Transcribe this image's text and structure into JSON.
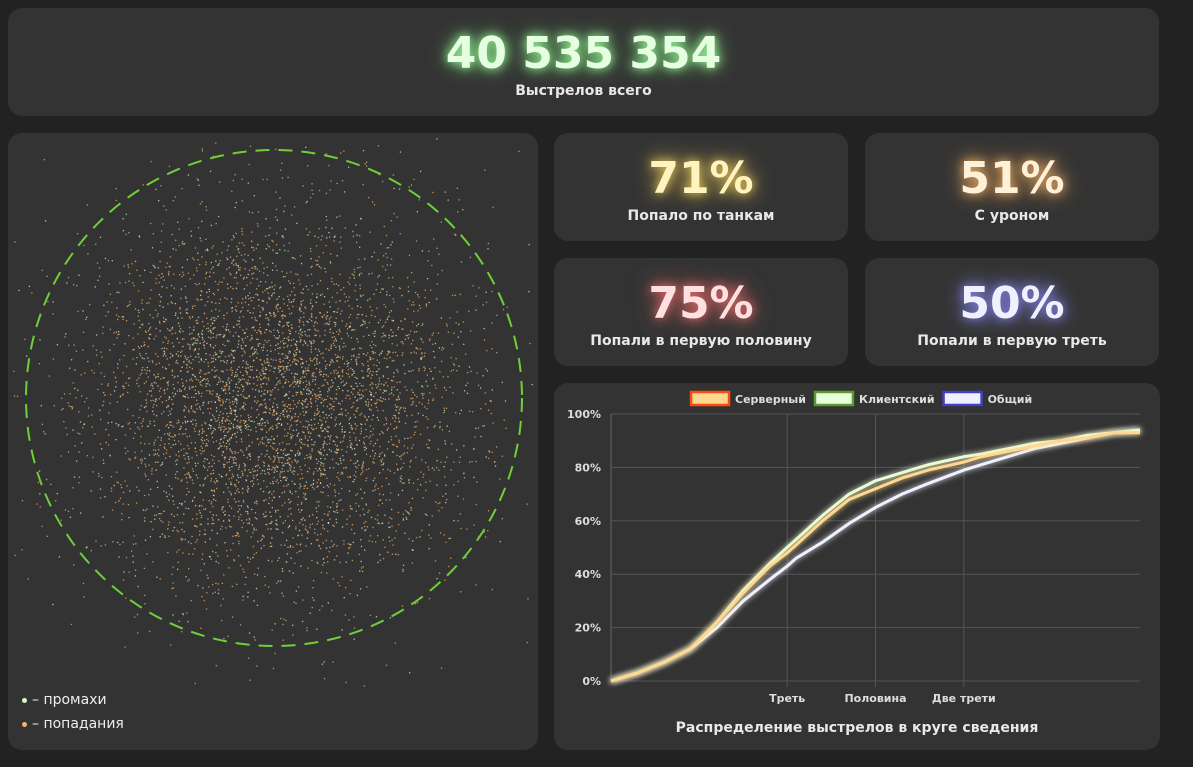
{
  "total": {
    "value": "40 535 354",
    "label": "Выстрелов всего"
  },
  "stats": [
    {
      "value": "71%",
      "label": "Попало по танкам",
      "color": "#fff3c0",
      "glow": "#e8c85a"
    },
    {
      "value": "51%",
      "label": "С уроном",
      "color": "#fff0d8",
      "glow": "#e8a860"
    },
    {
      "value": "75%",
      "label": "Попали в первую половину",
      "color": "#ffe0e0",
      "glow": "#e06a6a"
    },
    {
      "value": "50%",
      "label": "Попали в первую треть",
      "color": "#f0f0ff",
      "glow": "#8080e0"
    }
  ],
  "scatter_legend": {
    "miss": "– промахи",
    "hit": "– попадания",
    "miss_color": "#d8f5d0",
    "hit_color": "#f5b56a"
  },
  "chart_data": {
    "type": "line",
    "title": "Распределение выстрелов в круге сведения",
    "x": [
      0,
      0.05,
      0.1,
      0.15,
      0.2,
      0.25,
      0.3,
      0.333,
      0.35,
      0.4,
      0.45,
      0.5,
      0.55,
      0.6,
      0.667,
      0.7,
      0.75,
      0.8,
      0.85,
      0.9,
      0.95,
      1
    ],
    "series": [
      {
        "name": "Серверный",
        "color": "#ffd890",
        "border": "#ff4a10",
        "values": [
          0,
          3,
          7,
          12,
          22,
          33,
          43,
          48,
          51,
          60,
          68,
          72,
          76,
          79,
          82,
          84,
          86,
          88,
          90,
          91,
          93,
          93
        ]
      },
      {
        "name": "Клиентский",
        "color": "#e8ffdc",
        "border": "#5a9a30",
        "values": [
          0,
          3,
          7,
          12,
          22,
          34,
          44,
          50,
          53,
          62,
          70,
          75,
          78,
          81,
          84,
          85,
          87,
          89,
          90,
          92,
          93,
          94
        ]
      },
      {
        "name": "Общий",
        "color": "#f0f0ff",
        "border": "#4040c0",
        "values": [
          0,
          3,
          7,
          12,
          20,
          30,
          38,
          43,
          46,
          52,
          59,
          65,
          70,
          74,
          79,
          81,
          84,
          87,
          89,
          91,
          93,
          94
        ]
      }
    ],
    "xticks": [
      {
        "v": 0.333,
        "label": "Треть"
      },
      {
        "v": 0.5,
        "label": "Половина"
      },
      {
        "v": 0.667,
        "label": "Две трети"
      }
    ],
    "yticks": [
      "0%",
      "20%",
      "40%",
      "60%",
      "80%",
      "100%"
    ],
    "ylim": [
      0,
      100
    ],
    "xlim": [
      0,
      1
    ],
    "legend": "top"
  }
}
